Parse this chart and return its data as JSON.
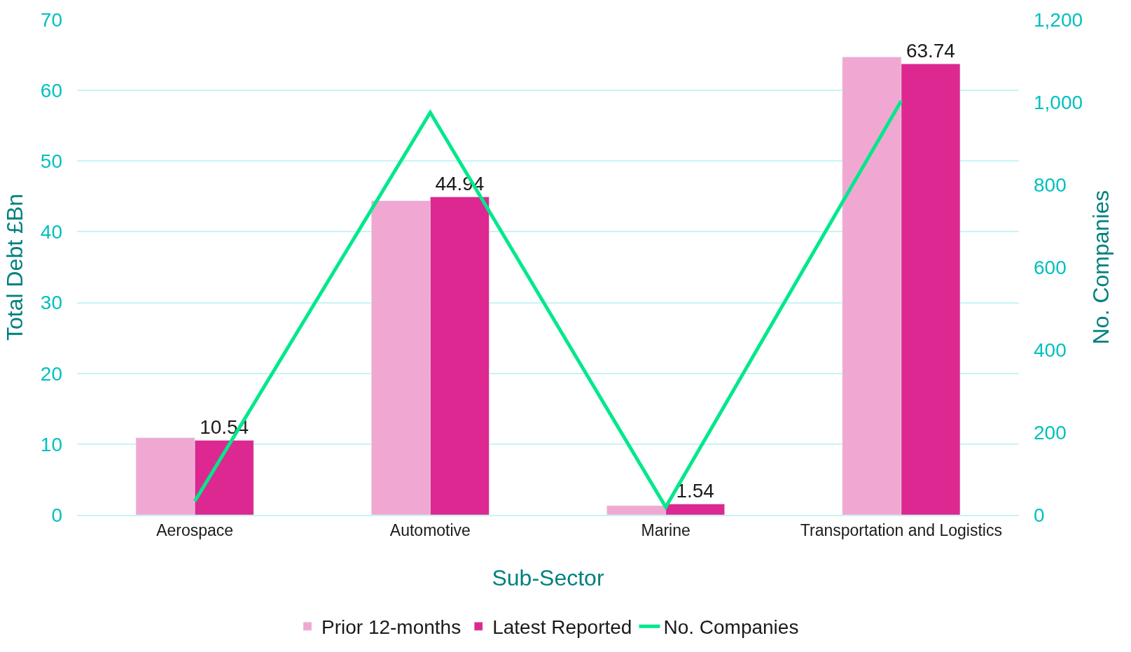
{
  "chart_data": {
    "type": "bar",
    "categories": [
      "Aerospace",
      "Automotive",
      "Marine",
      "Transportation and Logistics"
    ],
    "xlabel": "Sub-Sector",
    "ylabel": "Total Debt £Bn",
    "y2label": "No. Companies",
    "series": [
      {
        "name": "Prior 12-months",
        "color": "#f0a8d2",
        "values": [
          10.9,
          44.4,
          1.3,
          64.7
        ]
      },
      {
        "name": "Latest Reported",
        "color": "#dc2890",
        "values": [
          10.54,
          44.94,
          1.54,
          63.74
        ],
        "value_labels": [
          "10.54",
          "44.94",
          "1.54",
          "63.74"
        ]
      },
      {
        "name": "No. Companies",
        "type": "line",
        "axis": "y2",
        "color": "#00e88c",
        "values": [
          33,
          975,
          19,
          1003
        ]
      }
    ],
    "ylim": [
      0,
      70
    ],
    "yticks": [
      0,
      10,
      20,
      30,
      40,
      50,
      60,
      70
    ],
    "y2lim": [
      0,
      1200
    ],
    "y2ticks": [
      0,
      200,
      400,
      600,
      800,
      {
        "value": 1000,
        "label": "1,000"
      },
      {
        "value": 1200,
        "label": "1,200"
      }
    ],
    "grid": "y",
    "legend": "bottom",
    "marker": "none"
  }
}
